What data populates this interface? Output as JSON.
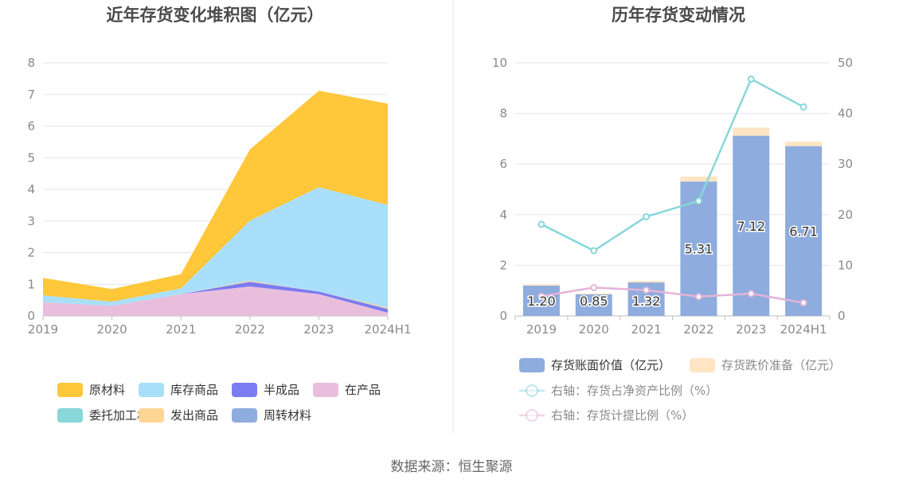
{
  "source": "数据来源：恒生聚源",
  "colors": {
    "raw_materials": "#FFC73A",
    "finished_goods": "#A9DFFA",
    "semi_finished": "#7B7BF2",
    "wip": "#E9BEDD",
    "consigned": "#88D7D9",
    "shipped": "#FFD595",
    "turnover": "#8EACDE",
    "book_value": "#8EACDE",
    "impairment": "#FFE5C4",
    "ratio_net_assets": "#88D7D9",
    "provision_ratio": "#E6B3D7"
  },
  "chart_data": [
    {
      "type": "area",
      "title": "近年存货变化堆积图（亿元）",
      "categories": [
        "2019",
        "2020",
        "2021",
        "2022",
        "2023",
        "2024H1"
      ],
      "ylim": [
        0,
        8
      ],
      "yticks": [
        "0",
        "1",
        "2",
        "3",
        "4",
        "5",
        "6",
        "7",
        "8"
      ],
      "grid": true,
      "legend_position": "bottom",
      "stack_order": [
        "wip",
        "turnover",
        "semi_finished",
        "consigned",
        "shipped",
        "finished_goods",
        "raw_materials"
      ],
      "series": [
        {
          "key": "raw_materials",
          "name": "原材料",
          "values": [
            0.55,
            0.4,
            0.45,
            2.25,
            3.05,
            3.2
          ]
        },
        {
          "key": "finished_goods",
          "name": "库存商品",
          "values": [
            0.22,
            0.13,
            0.18,
            1.9,
            3.3,
            3.25
          ]
        },
        {
          "key": "semi_finished",
          "name": "半成品",
          "values": [
            0.0,
            0.0,
            0.0,
            0.15,
            0.08,
            0.12
          ]
        },
        {
          "key": "wip",
          "name": "在产品",
          "values": [
            0.43,
            0.32,
            0.69,
            0.93,
            0.69,
            0.1
          ]
        },
        {
          "key": "consigned",
          "name": "委托加工材料",
          "values": [
            0.0,
            0.0,
            0.0,
            0.0,
            0.0,
            0.0
          ]
        },
        {
          "key": "shipped",
          "name": "发出商品",
          "values": [
            0.0,
            0.0,
            0.0,
            0.03,
            0.0,
            0.04
          ]
        },
        {
          "key": "turnover",
          "name": "周转材料",
          "values": [
            0.0,
            0.0,
            0.0,
            0.0,
            0.0,
            0.0
          ]
        }
      ]
    },
    {
      "type": "bar",
      "title": "历年存货变动情况",
      "categories": [
        "2019",
        "2020",
        "2021",
        "2022",
        "2023",
        "2024H1"
      ],
      "ylim_left": [
        0,
        10
      ],
      "yticks_left": [
        "0",
        "2",
        "4",
        "6",
        "8",
        "10"
      ],
      "ylim_right": [
        0,
        50
      ],
      "yticks_right": [
        "0",
        "10",
        "20",
        "30",
        "40",
        "50"
      ],
      "grid": true,
      "legend_position": "bottom",
      "bar_labels": [
        "1.20",
        "0.85",
        "1.32",
        "5.31",
        "7.12",
        "6.71"
      ],
      "series": [
        {
          "key": "book_value",
          "name": "存货账面价值（亿元）",
          "kind": "bar",
          "axis": "left",
          "values": [
            1.2,
            0.85,
            1.32,
            5.31,
            7.12,
            6.71
          ]
        },
        {
          "key": "impairment",
          "name": "存货跌价准备（亿元）",
          "kind": "bar",
          "axis": "left",
          "values": [
            0.05,
            0.04,
            0.06,
            0.2,
            0.32,
            0.18
          ]
        },
        {
          "key": "ratio_net_assets",
          "name": "右轴：存货占净资产比例（%）",
          "kind": "line",
          "axis": "right",
          "values": [
            18.1,
            12.9,
            19.6,
            22.7,
            46.8,
            41.3
          ]
        },
        {
          "key": "provision_ratio",
          "name": "右轴：存货计提比例（%）",
          "kind": "line",
          "axis": "right",
          "values": [
            3.9,
            5.6,
            5.1,
            3.8,
            4.4,
            2.6
          ]
        }
      ]
    }
  ]
}
